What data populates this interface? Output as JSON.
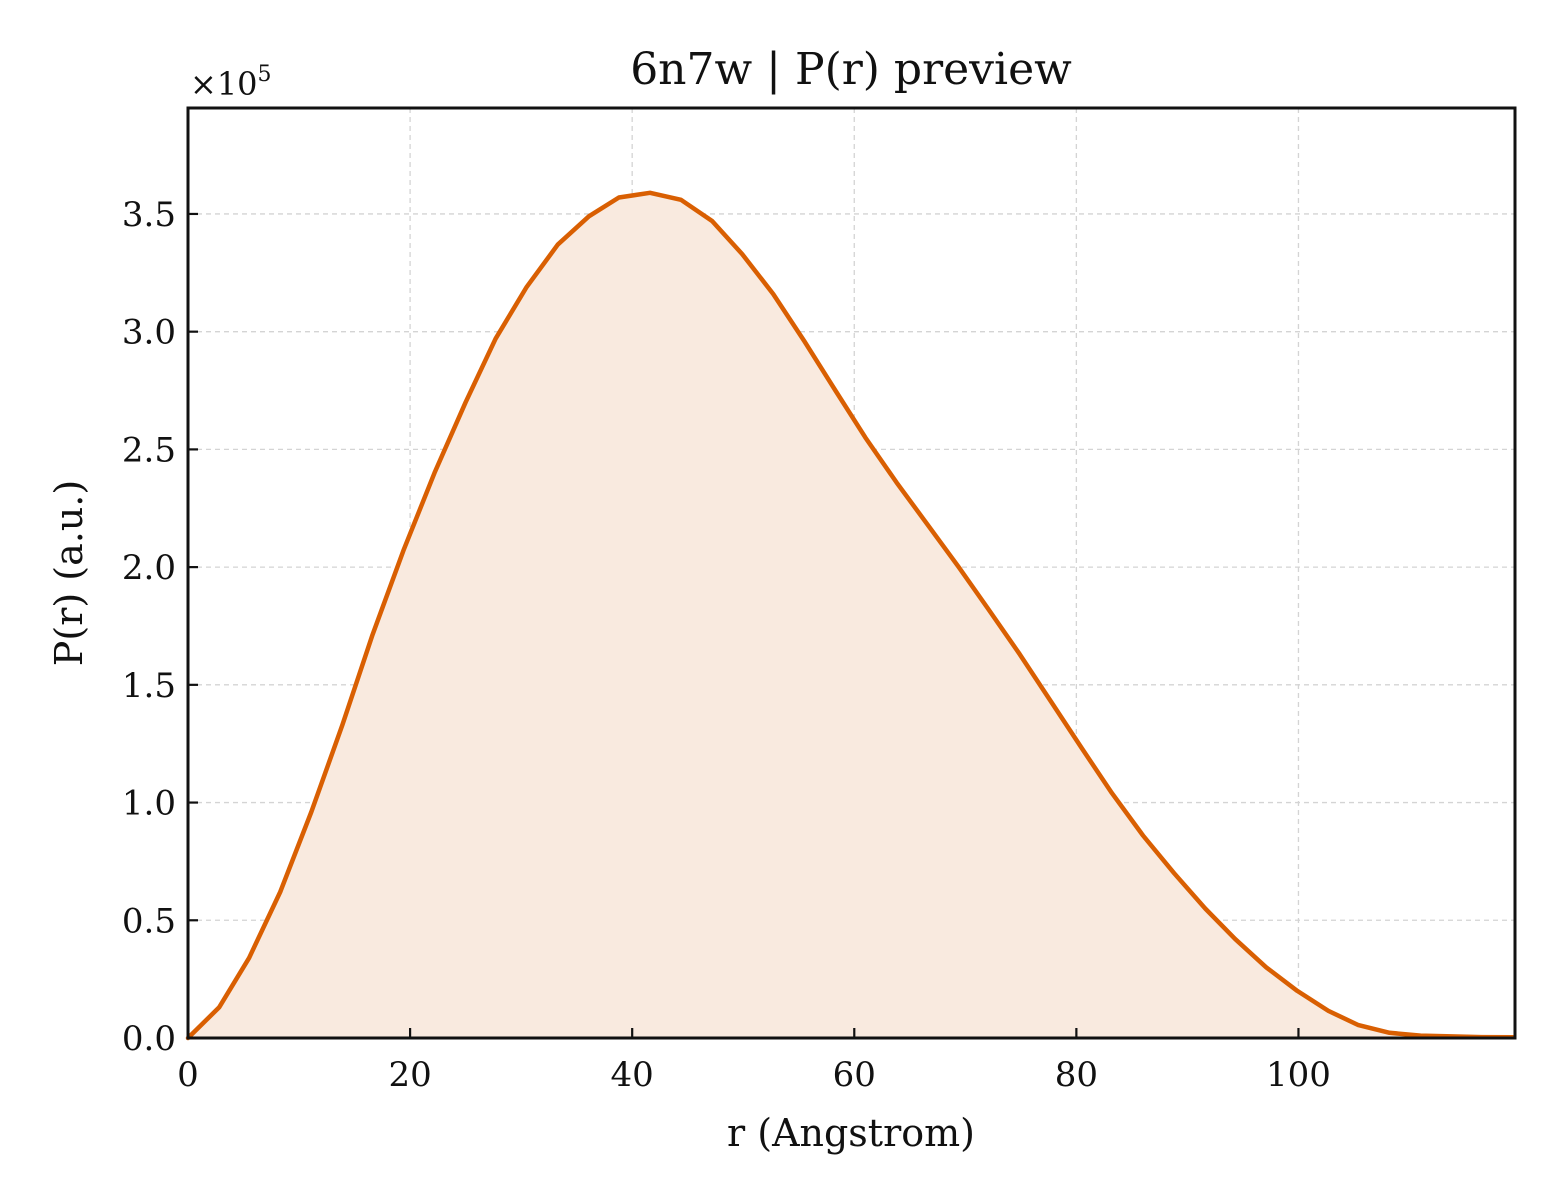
{
  "chart_data": {
    "type": "area",
    "title": "6n7w | P(r) preview",
    "xlabel": "r (Angstrom)",
    "ylabel": "P(r) (a.u.)",
    "y_multiplier": "×10",
    "y_multiplier_exp": "5",
    "xlim": [
      0,
      119.5
    ],
    "ylim": [
      0,
      3.95
    ],
    "x_ticks": [
      {
        "value": 0,
        "label": "0"
      },
      {
        "value": 20,
        "label": "20"
      },
      {
        "value": 40,
        "label": "40"
      },
      {
        "value": 60,
        "label": "60"
      },
      {
        "value": 80,
        "label": "80"
      },
      {
        "value": 100,
        "label": "100"
      }
    ],
    "y_ticks": [
      {
        "value": 0.0,
        "label": "0.0"
      },
      {
        "value": 0.5,
        "label": "0.5"
      },
      {
        "value": 1.0,
        "label": "1.0"
      },
      {
        "value": 1.5,
        "label": "1.5"
      },
      {
        "value": 2.0,
        "label": "2.0"
      },
      {
        "value": 2.5,
        "label": "2.5"
      },
      {
        "value": 3.0,
        "label": "3.0"
      },
      {
        "value": 3.5,
        "label": "3.5"
      }
    ],
    "grid": true,
    "colors": {
      "line": "#d95f02",
      "fill": "#f9eadf"
    },
    "series": [
      {
        "x": [
          0,
          2.8,
          5.5,
          8.3,
          11.1,
          13.9,
          16.6,
          19.4,
          22.2,
          25.0,
          27.7,
          30.5,
          33.3,
          36.1,
          38.8,
          41.6,
          44.4,
          47.2,
          49.9,
          52.7,
          55.5,
          58.3,
          61.0,
          63.8,
          66.6,
          69.4,
          72.1,
          74.9,
          77.7,
          80.5,
          83.2,
          86.0,
          88.8,
          91.6,
          94.3,
          97.1,
          99.9,
          102.7,
          105.4,
          108.2,
          111.0,
          113.8,
          116.5,
          119.3
        ],
        "values": [
          0.0,
          0.13,
          0.34,
          0.62,
          0.96,
          1.33,
          1.71,
          2.07,
          2.4,
          2.7,
          2.97,
          3.19,
          3.37,
          3.49,
          3.57,
          3.59,
          3.56,
          3.47,
          3.33,
          3.16,
          2.96,
          2.75,
          2.55,
          2.36,
          2.18,
          2.0,
          1.82,
          1.63,
          1.43,
          1.23,
          1.04,
          0.86,
          0.7,
          0.55,
          0.42,
          0.3,
          0.2,
          0.115,
          0.055,
          0.022,
          0.01,
          0.007,
          0.004,
          0.003
        ]
      }
    ]
  }
}
